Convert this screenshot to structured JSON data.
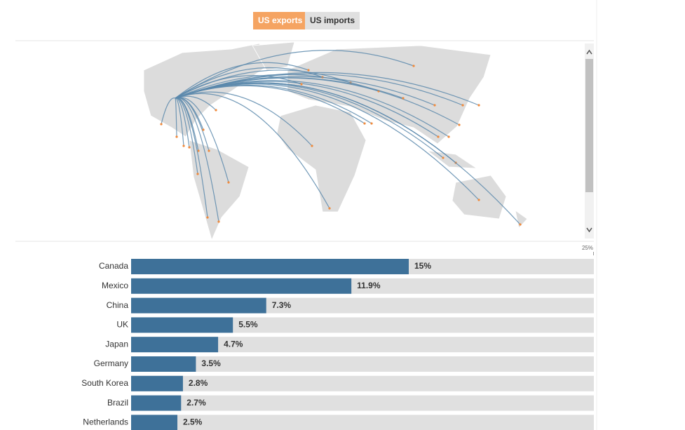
{
  "toggle": {
    "options": [
      "US exports",
      "US imports"
    ],
    "active": 0
  },
  "chart_data": {
    "type": "bar",
    "orientation": "horizontal",
    "categories": [
      "Canada",
      "Mexico",
      "China",
      "UK",
      "Japan",
      "Germany",
      "South Korea",
      "Brazil",
      "Netherlands"
    ],
    "values": [
      15,
      11.9,
      7.3,
      5.5,
      4.7,
      3.5,
      2.8,
      2.7,
      2.5
    ],
    "value_labels": [
      "15%",
      "11.9%",
      "7.3%",
      "5.5%",
      "4.7%",
      "3.5%",
      "2.8%",
      "2.7%",
      "2.5%"
    ],
    "color": "#3e7199",
    "track_color": "#e0e0e0",
    "xlim": [
      0,
      25
    ],
    "xticks": [
      {
        "value": 25,
        "label": "25%"
      }
    ]
  }
}
